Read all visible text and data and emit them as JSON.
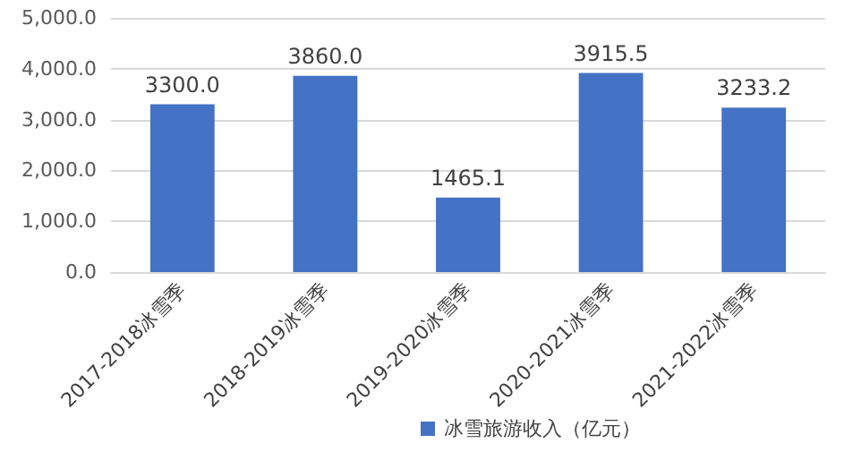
{
  "chart_data": {
    "type": "bar",
    "categories": [
      "2017-2018冰雪季",
      "2018-2019冰雪季",
      "2019-2020冰雪季",
      "2020-2021冰雪季",
      "2021-2022冰雪季"
    ],
    "series": [
      {
        "name": "冰雪旅游收入（亿元）",
        "color": "#4472c4",
        "values": [
          3300.0,
          3860.0,
          1465.1,
          3915.5,
          3233.2
        ]
      }
    ],
    "value_labels": [
      "3300.0",
      "3860.0",
      "1465.1",
      "3915.5",
      "3233.2"
    ],
    "ylim": [
      0,
      5000
    ],
    "yticks": [
      {
        "value": 0,
        "label": "0.0"
      },
      {
        "value": 1000,
        "label": "1,000.0"
      },
      {
        "value": 2000,
        "label": "2,000.0"
      },
      {
        "value": 3000,
        "label": "3,000.0"
      },
      {
        "value": 4000,
        "label": "4,000.0"
      },
      {
        "value": 5000,
        "label": "5,000.0"
      }
    ],
    "grid": "y",
    "legend": "bottom"
  }
}
